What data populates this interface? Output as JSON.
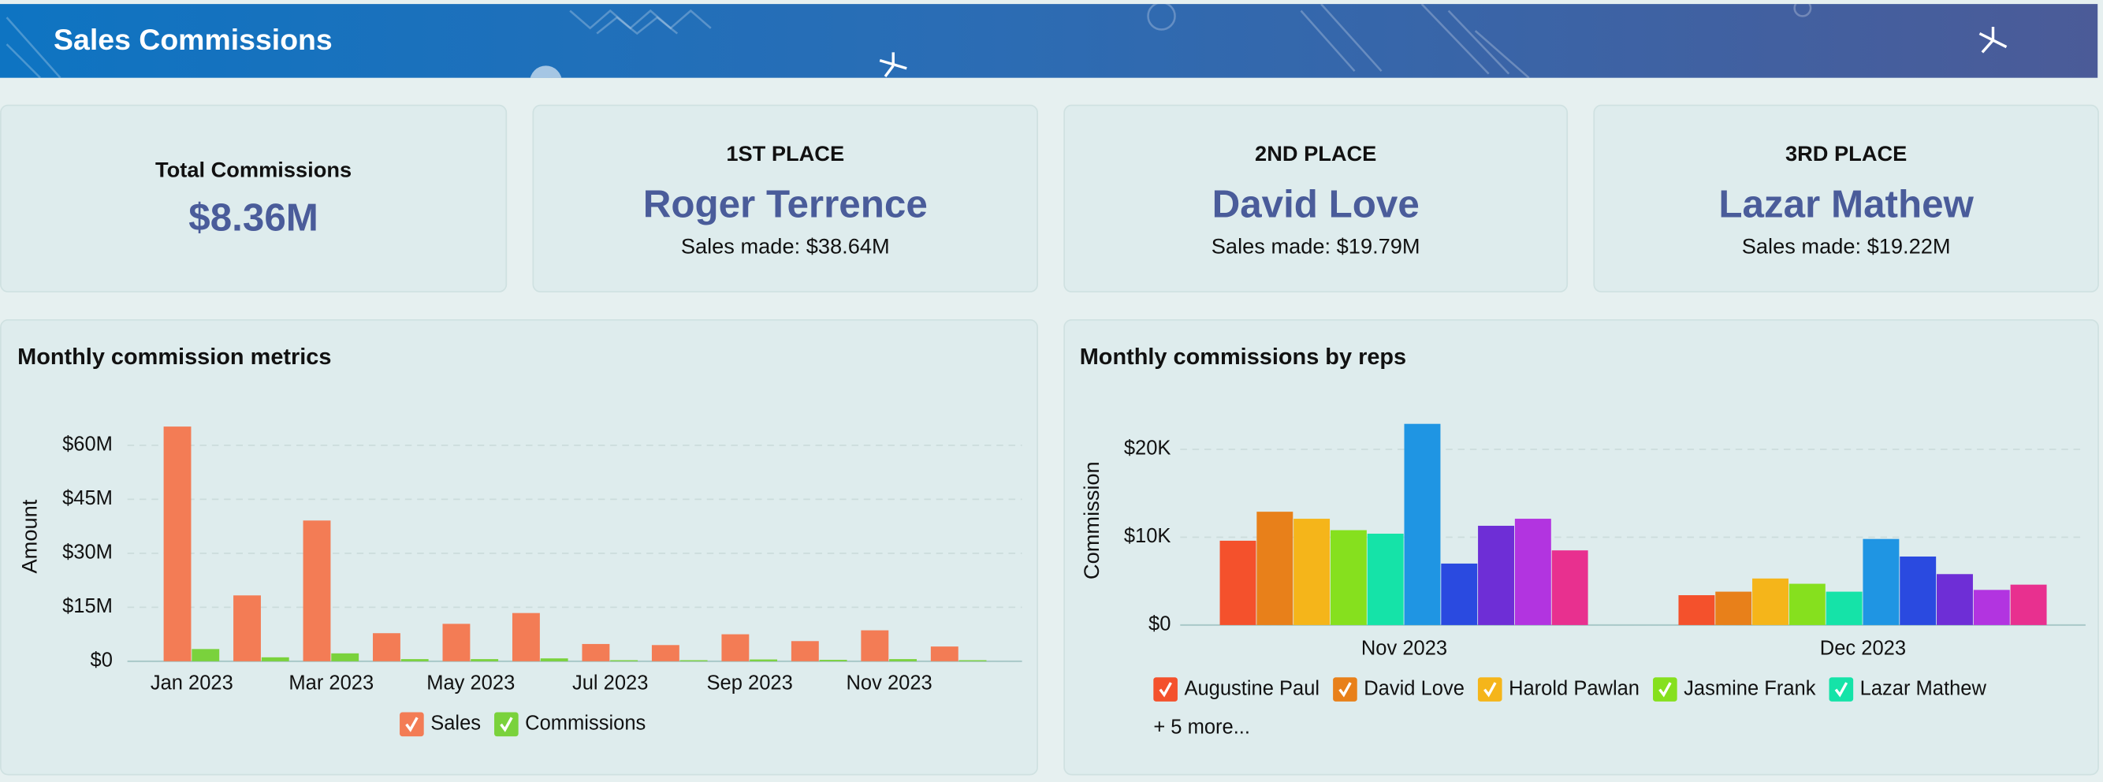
{
  "header": {
    "title": "Sales Commissions"
  },
  "cards": [
    {
      "label": "Total Commissions",
      "value": "$8.36M"
    },
    {
      "label": "1ST PLACE",
      "name": "Roger Terrence",
      "detail": "Sales made: $38.64M"
    },
    {
      "label": "2ND PLACE",
      "name": "David Love",
      "detail": "Sales made: $19.79M"
    },
    {
      "label": "3RD PLACE",
      "name": "Lazar Mathew",
      "detail": "Sales made: $19.22M"
    }
  ],
  "chart_data": [
    {
      "type": "bar",
      "title": "Monthly commission metrics",
      "ylabel": "Amount",
      "categories": [
        "Jan 2023",
        null,
        "Mar 2023",
        null,
        "May 2023",
        null,
        "Jul 2023",
        null,
        "Sep 2023",
        null,
        "Nov 2023",
        null
      ],
      "series": [
        {
          "name": "Sales",
          "color": "#f37c55",
          "values": [
            65.2,
            18.3,
            39.1,
            7.8,
            10.4,
            13.4,
            4.8,
            4.5,
            7.5,
            5.6,
            8.6,
            4.1
          ]
        },
        {
          "name": "Commissions",
          "color": "#7ad23c",
          "values": [
            3.4,
            1.1,
            2.2,
            0.6,
            0.6,
            0.8,
            0.3,
            0.3,
            0.5,
            0.4,
            0.6,
            0.3
          ]
        }
      ],
      "ylim": [
        0,
        68
      ],
      "yticks": [
        {
          "value": 0,
          "label": "$0"
        },
        {
          "value": 15,
          "label": "$15M"
        },
        {
          "value": 30,
          "label": "$30M"
        },
        {
          "value": 45,
          "label": "$45M"
        },
        {
          "value": 60,
          "label": "$60M"
        }
      ],
      "grid": true,
      "legend": "bottom"
    },
    {
      "type": "bar",
      "title": "Monthly commissions by reps",
      "ylabel": "Commission",
      "categories": [
        "Nov 2023",
        "Dec 2023"
      ],
      "series": [
        {
          "name": "Augustine Paul",
          "color": "#f4512c",
          "values": [
            9.6,
            3.4
          ]
        },
        {
          "name": "David Love",
          "color": "#e8801a",
          "values": [
            12.9,
            3.8
          ]
        },
        {
          "name": "Harold Pawlan",
          "color": "#f5b51a",
          "values": [
            12.1,
            5.3
          ]
        },
        {
          "name": "Jasmine Frank",
          "color": "#86e01e",
          "values": [
            10.8,
            4.7
          ]
        },
        {
          "name": "Lazar Mathew",
          "color": "#15e3a8",
          "values": [
            10.4,
            3.8
          ]
        },
        {
          "color": "#1f95e3",
          "values": [
            22.9,
            9.8
          ]
        },
        {
          "color": "#2a4ae0",
          "values": [
            7.0,
            7.8
          ]
        },
        {
          "color": "#6e2ed6",
          "values": [
            11.3,
            5.8
          ]
        },
        {
          "color": "#b234e0",
          "values": [
            12.1,
            4.0
          ]
        },
        {
          "color": "#e8308f",
          "values": [
            8.5,
            4.6
          ]
        }
      ],
      "legend_more": "+ 5 more...",
      "ylim": [
        0,
        24
      ],
      "yticks": [
        {
          "value": 0,
          "label": "$0"
        },
        {
          "value": 10,
          "label": "$10K"
        },
        {
          "value": 20,
          "label": "$20K"
        }
      ],
      "grid": true,
      "legend": "bottom"
    }
  ]
}
